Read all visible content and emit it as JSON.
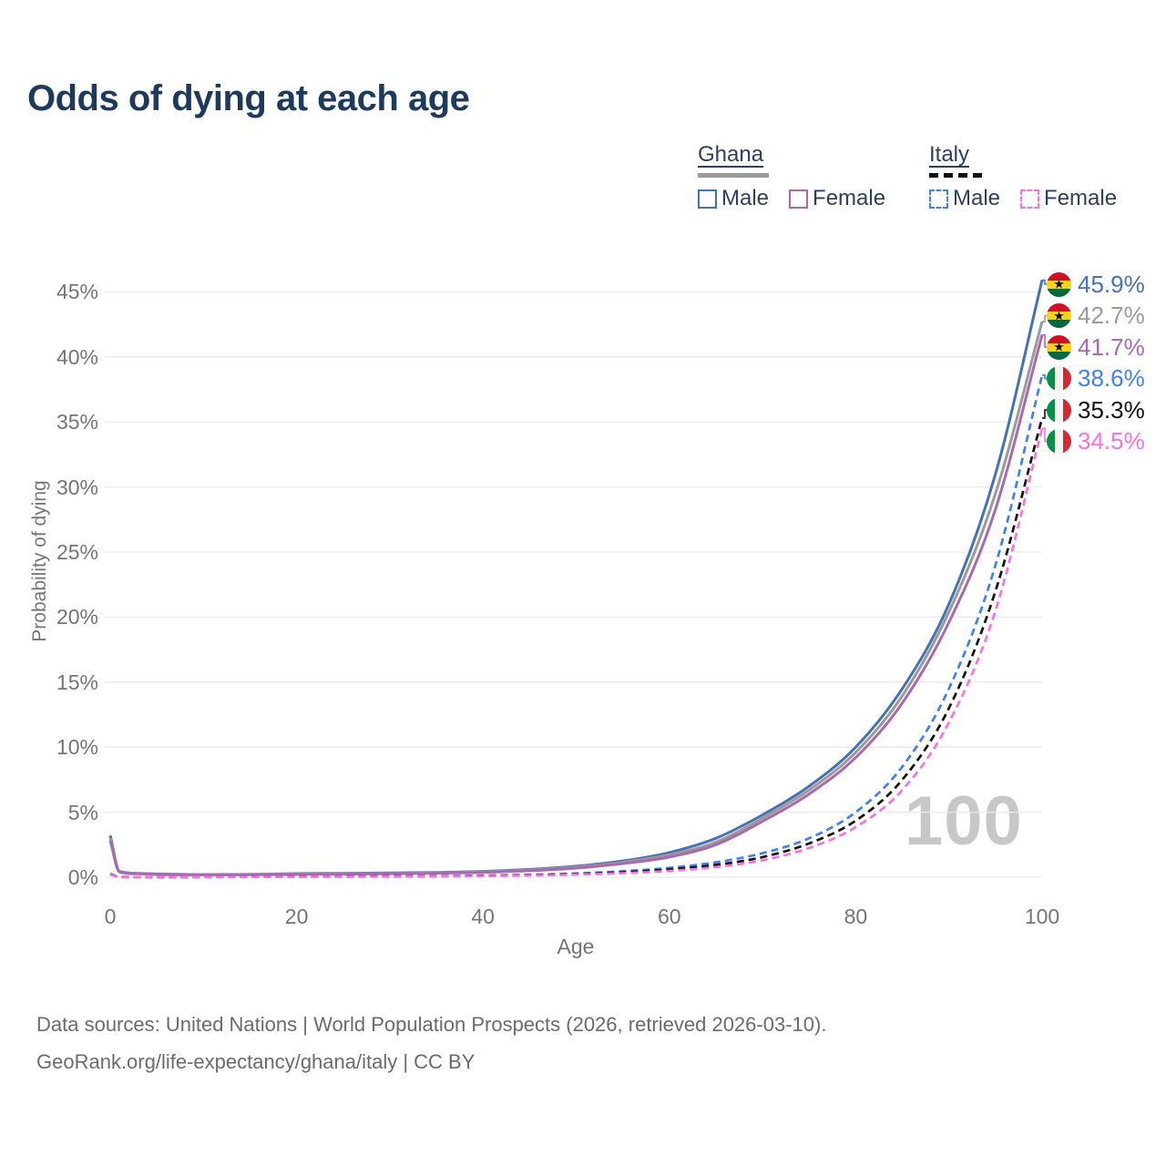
{
  "header": {
    "title": "Odds of dying at each age"
  },
  "legend": {
    "groups": [
      {
        "country": "Ghana",
        "style": "solid",
        "items": [
          {
            "label": "Male",
            "color_key": "ghana_male"
          },
          {
            "label": "Female",
            "color_key": "ghana_female"
          }
        ]
      },
      {
        "country": "Italy",
        "style": "dashed",
        "items": [
          {
            "label": "Male",
            "color_key": "italy_male"
          },
          {
            "label": "Female",
            "color_key": "italy_female"
          }
        ]
      }
    ]
  },
  "chart_data": {
    "type": "line",
    "title": "Odds of dying at each age",
    "xlabel": "Age",
    "ylabel": "Probability of dying",
    "xlim": [
      0,
      100
    ],
    "ylim": [
      0,
      46
    ],
    "grid": true,
    "age_marker": "100",
    "x_ticks": [
      {
        "value": 0,
        "label": "0"
      },
      {
        "value": 20,
        "label": "20"
      },
      {
        "value": 40,
        "label": "40"
      },
      {
        "value": 60,
        "label": "60"
      },
      {
        "value": 80,
        "label": "80"
      },
      {
        "value": 100,
        "label": "100"
      }
    ],
    "y_ticks": [
      {
        "value": 0,
        "label": "0%"
      },
      {
        "value": 5,
        "label": "5%"
      },
      {
        "value": 10,
        "label": "10%"
      },
      {
        "value": 15,
        "label": "15%"
      },
      {
        "value": 20,
        "label": "20%"
      },
      {
        "value": 25,
        "label": "25%"
      },
      {
        "value": 30,
        "label": "30%"
      },
      {
        "value": 35,
        "label": "35%"
      },
      {
        "value": 40,
        "label": "40%"
      },
      {
        "value": 45,
        "label": "45%"
      }
    ],
    "ages": [
      0,
      1,
      3,
      5,
      10,
      15,
      20,
      25,
      30,
      35,
      40,
      45,
      50,
      55,
      60,
      65,
      70,
      75,
      80,
      85,
      90,
      95,
      100
    ],
    "series": [
      {
        "country": "Ghana",
        "sex": "Male",
        "style": "solid",
        "flag": "ghana",
        "color_key": "ghana_male",
        "end_label": "45.9%",
        "end_value": 45.9,
        "values": [
          3.2,
          0.45,
          0.3,
          0.25,
          0.2,
          0.22,
          0.28,
          0.3,
          0.33,
          0.37,
          0.45,
          0.6,
          0.85,
          1.25,
          1.9,
          3.0,
          4.8,
          7.0,
          10.0,
          14.5,
          21.0,
          31.0,
          45.9
        ]
      },
      {
        "country": "Ghana",
        "sex": "",
        "style": "solid",
        "flag": "ghana",
        "color_key": "ghana_both",
        "end_label": "42.7%",
        "end_value": 42.7,
        "values": [
          3.0,
          0.42,
          0.28,
          0.23,
          0.19,
          0.2,
          0.25,
          0.27,
          0.3,
          0.34,
          0.41,
          0.55,
          0.78,
          1.15,
          1.72,
          2.7,
          4.55,
          6.7,
          9.6,
          13.95,
          20.4,
          29.5,
          42.7
        ]
      },
      {
        "country": "Ghana",
        "sex": "Female",
        "style": "solid",
        "flag": "ghana",
        "color_key": "ghana_female",
        "end_label": "41.7%",
        "end_value": 41.7,
        "values": [
          2.8,
          0.4,
          0.26,
          0.21,
          0.18,
          0.19,
          0.22,
          0.24,
          0.27,
          0.31,
          0.37,
          0.5,
          0.7,
          1.05,
          1.55,
          2.5,
          4.3,
          6.4,
          9.2,
          13.4,
          19.6,
          28.3,
          41.7
        ]
      },
      {
        "country": "Italy",
        "sex": "Male",
        "style": "dashed",
        "flag": "italy",
        "color_key": "italy_male",
        "end_label": "38.6%",
        "end_value": 38.6,
        "values": [
          0.25,
          0.02,
          0.012,
          0.01,
          0.012,
          0.035,
          0.055,
          0.06,
          0.07,
          0.09,
          0.13,
          0.19,
          0.29,
          0.46,
          0.72,
          1.15,
          1.85,
          3.0,
          5.0,
          8.5,
          14.5,
          24.0,
          38.6
        ]
      },
      {
        "country": "Italy",
        "sex": "",
        "style": "dashed",
        "flag": "italy",
        "color_key": "italy_both",
        "end_label": "35.3%",
        "end_value": 35.3,
        "values": [
          0.23,
          0.018,
          0.011,
          0.009,
          0.011,
          0.028,
          0.042,
          0.05,
          0.06,
          0.075,
          0.11,
          0.16,
          0.24,
          0.38,
          0.6,
          0.95,
          1.55,
          2.6,
          4.35,
          7.5,
          13.0,
          22.0,
          35.3
        ]
      },
      {
        "country": "Italy",
        "sex": "Female",
        "style": "dashed",
        "flag": "italy",
        "color_key": "italy_female",
        "end_label": "34.5%",
        "end_value": 34.5,
        "values": [
          0.2,
          0.016,
          0.009,
          0.008,
          0.009,
          0.022,
          0.03,
          0.035,
          0.045,
          0.06,
          0.09,
          0.13,
          0.2,
          0.31,
          0.48,
          0.78,
          1.3,
          2.25,
          3.85,
          6.7,
          11.9,
          20.5,
          34.5
        ]
      }
    ]
  },
  "footer": {
    "line1": "Data sources: United Nations | World Population Prospects (2026, retrieved 2026-03-10).",
    "line2": "GeoRank.org/life-expectancy/ghana/italy | CC BY"
  },
  "colors": {
    "title": "#1d3a5c",
    "legend_text": "#2d3f5e",
    "axis_text": "#757575",
    "grid": "#e9e9e9",
    "watermark": "#c7c7c7",
    "footer_text": "#6b6b6b",
    "ghana_male": "#4372b5",
    "ghana_both": "#9a9a9a",
    "ghana_female": "#a869b0",
    "italy_male": "#3f80f2",
    "italy_both": "#111111",
    "italy_female": "#f970e5",
    "flag_ghana_red": "#ce1126",
    "flag_ghana_gold": "#fcd116",
    "flag_ghana_green": "#006b3f",
    "flag_italy_green": "#009246",
    "flag_italy_white": "#f2f2ef",
    "flag_italy_red": "#ce2b37"
  }
}
